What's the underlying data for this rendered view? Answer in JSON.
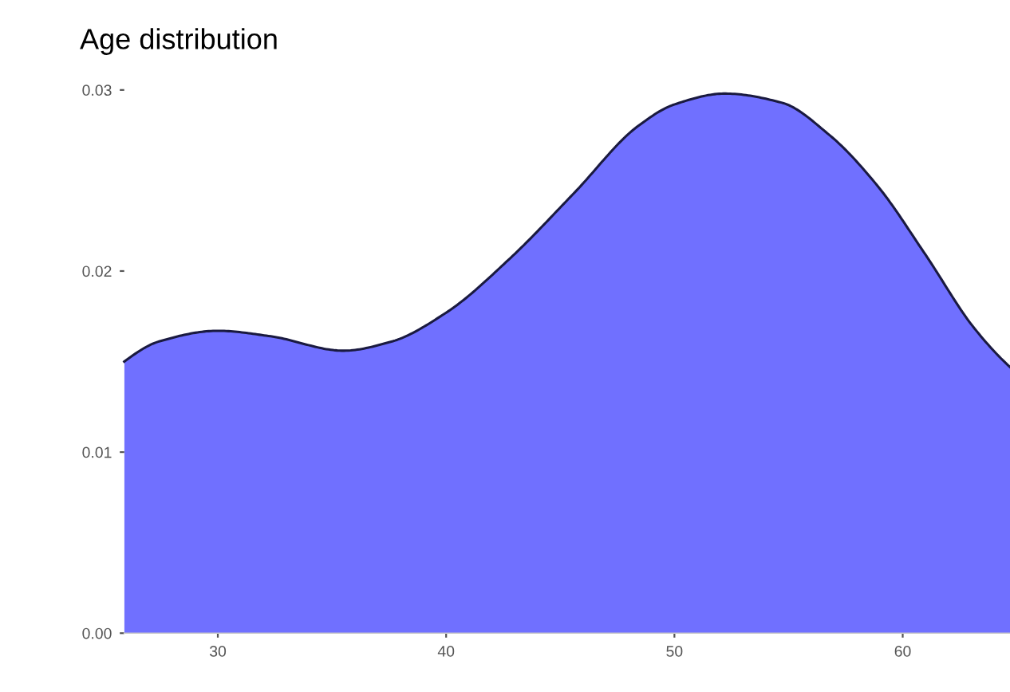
{
  "chart_data": {
    "type": "area",
    "title": "Age distribution",
    "x": [
      25.9,
      27.4,
      30,
      32.3,
      35.5,
      37.6,
      40,
      42.8,
      45.6,
      48.4,
      50,
      52.2,
      54.7,
      56.8,
      58.9,
      61,
      63.1,
      64.7
    ],
    "series": [
      {
        "color": "#7070ff",
        "values": [
          0.015,
          0.0161,
          0.0167,
          0.0164,
          0.0156,
          0.0161,
          0.0177,
          0.0207,
          0.0243,
          0.028,
          0.0292,
          0.0298,
          0.0293,
          0.0275,
          0.0247,
          0.0209,
          0.0169,
          0.0147
        ]
      }
    ],
    "xlim": [
      25.9,
      64.7
    ],
    "ylim": [
      0,
      0.03
    ],
    "xticks": [
      30,
      40,
      50,
      60
    ],
    "yticks": [
      {
        "value": 0,
        "label": "0.00"
      },
      {
        "value": 0.01,
        "label": "0.01"
      },
      {
        "value": 0.02,
        "label": "0.02"
      },
      {
        "value": 0.03,
        "label": "0.03"
      }
    ],
    "grid": false
  }
}
